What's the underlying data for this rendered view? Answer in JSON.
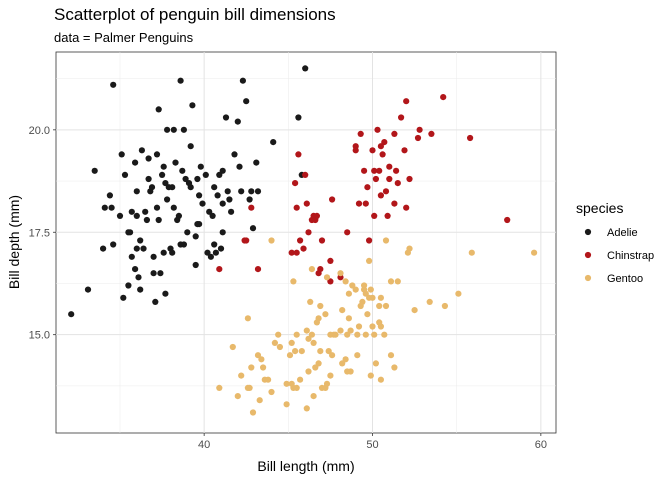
{
  "chart_data": {
    "type": "scatter",
    "title": "Scatterplot of penguin bill dimensions",
    "subtitle": "data = Palmer Penguins",
    "xlabel": "Bill length (mm)",
    "ylabel": "Bill depth (mm)",
    "xlim": [
      31.2,
      60.9
    ],
    "ylim": [
      12.6,
      21.9
    ],
    "xticks": [
      40,
      50,
      60
    ],
    "yticks": [
      15.0,
      17.5,
      20.0
    ],
    "xtick_labels": [
      "40",
      "50",
      "60"
    ],
    "ytick_labels": [
      "15.0",
      "17.5",
      "20.0"
    ],
    "grid": true,
    "legend_position": "right",
    "legend": {
      "title": "species",
      "entries": [
        "Adelie",
        "Chinstrap",
        "Gentoo"
      ]
    },
    "series": [
      {
        "name": "Adelie",
        "color": "#1a1a1a",
        "points": [
          [
            32.1,
            15.5
          ],
          [
            33.1,
            16.1
          ],
          [
            33.5,
            19.0
          ],
          [
            34.0,
            17.1
          ],
          [
            34.1,
            18.1
          ],
          [
            34.4,
            18.4
          ],
          [
            34.5,
            18.1
          ],
          [
            34.6,
            21.1
          ],
          [
            34.6,
            17.2
          ],
          [
            35.0,
            17.9
          ],
          [
            35.1,
            19.4
          ],
          [
            35.2,
            15.9
          ],
          [
            35.3,
            18.9
          ],
          [
            35.5,
            17.5
          ],
          [
            35.5,
            16.2
          ],
          [
            35.6,
            17.5
          ],
          [
            35.7,
            18.0
          ],
          [
            35.7,
            16.9
          ],
          [
            35.9,
            19.2
          ],
          [
            35.9,
            16.6
          ],
          [
            36.0,
            18.5
          ],
          [
            36.0,
            17.9
          ],
          [
            36.0,
            17.1
          ],
          [
            36.2,
            16.1
          ],
          [
            36.2,
            17.3
          ],
          [
            36.3,
            19.5
          ],
          [
            36.4,
            17.1
          ],
          [
            36.5,
            18.0
          ],
          [
            36.6,
            17.8
          ],
          [
            36.7,
            19.3
          ],
          [
            36.7,
            18.8
          ],
          [
            36.8,
            18.5
          ],
          [
            36.9,
            18.6
          ],
          [
            37.0,
            16.9
          ],
          [
            37.0,
            16.5
          ],
          [
            37.2,
            18.1
          ],
          [
            37.2,
            19.4
          ],
          [
            37.3,
            17.8
          ],
          [
            37.3,
            20.5
          ],
          [
            37.5,
            18.9
          ],
          [
            37.6,
            19.1
          ],
          [
            37.6,
            17.0
          ],
          [
            37.7,
            18.7
          ],
          [
            37.7,
            16.0
          ],
          [
            37.8,
            18.3
          ],
          [
            37.8,
            20.0
          ],
          [
            37.9,
            18.6
          ],
          [
            38.0,
            17.1
          ],
          [
            38.1,
            18.6
          ],
          [
            38.1,
            17.0
          ],
          [
            38.2,
            18.1
          ],
          [
            38.2,
            20.0
          ],
          [
            38.3,
            19.2
          ],
          [
            38.5,
            17.9
          ],
          [
            38.6,
            21.2
          ],
          [
            38.6,
            17.2
          ],
          [
            38.7,
            19.0
          ],
          [
            38.8,
            17.2
          ],
          [
            38.8,
            20.0
          ],
          [
            38.9,
            18.8
          ],
          [
            39.0,
            17.5
          ],
          [
            39.1,
            18.7
          ],
          [
            39.2,
            19.6
          ],
          [
            39.2,
            18.6
          ],
          [
            39.3,
            20.6
          ],
          [
            39.5,
            17.4
          ],
          [
            39.5,
            16.7
          ],
          [
            39.6,
            18.8
          ],
          [
            39.6,
            17.7
          ],
          [
            39.7,
            18.4
          ],
          [
            39.7,
            17.7
          ],
          [
            39.8,
            19.1
          ],
          [
            40.1,
            18.9
          ],
          [
            40.2,
            17.0
          ],
          [
            40.3,
            18.0
          ],
          [
            40.5,
            17.9
          ],
          [
            40.6,
            18.6
          ],
          [
            40.6,
            17.2
          ],
          [
            40.7,
            17.0
          ],
          [
            40.8,
            18.4
          ],
          [
            40.9,
            18.9
          ],
          [
            41.0,
            17.1
          ],
          [
            41.1,
            18.2
          ],
          [
            41.1,
            19.0
          ],
          [
            41.1,
            17.5
          ],
          [
            41.3,
            20.3
          ],
          [
            41.4,
            18.5
          ],
          [
            41.5,
            18.3
          ],
          [
            41.6,
            18.0
          ],
          [
            41.8,
            19.4
          ],
          [
            42.0,
            20.2
          ],
          [
            42.1,
            19.1
          ],
          [
            42.2,
            18.5
          ],
          [
            42.3,
            21.2
          ],
          [
            42.5,
            20.7
          ],
          [
            42.7,
            18.3
          ],
          [
            42.8,
            18.5
          ],
          [
            42.9,
            17.6
          ],
          [
            43.1,
            19.2
          ],
          [
            43.2,
            18.5
          ],
          [
            44.1,
            19.7
          ],
          [
            45.6,
            20.3
          ],
          [
            45.8,
            18.9
          ],
          [
            46.0,
            21.5
          ],
          [
            37.4,
            16.5
          ],
          [
            38.4,
            17.8
          ],
          [
            39.9,
            18.2
          ],
          [
            40.4,
            16.9
          ],
          [
            36.1,
            16.4
          ],
          [
            37.1,
            15.8
          ]
        ]
      },
      {
        "name": "Chinstrap",
        "color": "#b2161a",
        "points": [
          [
            40.9,
            16.6
          ],
          [
            42.4,
            17.3
          ],
          [
            42.5,
            17.3
          ],
          [
            43.2,
            16.6
          ],
          [
            42.8,
            18.1
          ],
          [
            45.2,
            17.0
          ],
          [
            45.4,
            18.7
          ],
          [
            45.5,
            17.0
          ],
          [
            45.6,
            19.4
          ],
          [
            45.7,
            17.3
          ],
          [
            45.9,
            17.1
          ],
          [
            46.0,
            18.9
          ],
          [
            46.1,
            18.2
          ],
          [
            46.2,
            17.5
          ],
          [
            46.4,
            17.8
          ],
          [
            46.5,
            17.9
          ],
          [
            46.6,
            17.8
          ],
          [
            46.7,
            17.9
          ],
          [
            46.8,
            16.5
          ],
          [
            46.9,
            16.6
          ],
          [
            47.0,
            17.3
          ],
          [
            47.5,
            16.8
          ],
          [
            47.6,
            18.3
          ],
          [
            48.1,
            16.4
          ],
          [
            48.5,
            17.5
          ],
          [
            49.0,
            19.5
          ],
          [
            49.2,
            18.2
          ],
          [
            49.3,
            19.9
          ],
          [
            49.5,
            19.0
          ],
          [
            49.6,
            18.2
          ],
          [
            49.7,
            18.6
          ],
          [
            49.8,
            17.3
          ],
          [
            50.0,
            19.5
          ],
          [
            50.1,
            17.9
          ],
          [
            50.2,
            18.8
          ],
          [
            50.3,
            20.0
          ],
          [
            50.4,
            19.0
          ],
          [
            50.5,
            18.4
          ],
          [
            50.6,
            19.4
          ],
          [
            50.7,
            19.7
          ],
          [
            50.8,
            18.5
          ],
          [
            50.9,
            17.9
          ],
          [
            51.0,
            18.8
          ],
          [
            51.3,
            19.9
          ],
          [
            51.4,
            19.0
          ],
          [
            51.5,
            18.7
          ],
          [
            51.7,
            20.3
          ],
          [
            51.9,
            19.5
          ],
          [
            52.0,
            18.1
          ],
          [
            52.0,
            20.7
          ],
          [
            52.2,
            18.8
          ],
          [
            52.7,
            19.8
          ],
          [
            52.8,
            20.0
          ],
          [
            53.5,
            19.9
          ],
          [
            54.2,
            20.8
          ],
          [
            55.8,
            19.8
          ],
          [
            58.0,
            17.8
          ],
          [
            49.0,
            19.6
          ],
          [
            50.5,
            19.6
          ],
          [
            51.3,
            18.2
          ],
          [
            50.1,
            19.0
          ],
          [
            47.5,
            16.3
          ],
          [
            45.5,
            18.1
          ],
          [
            51.0,
            19.1
          ]
        ]
      },
      {
        "name": "Gentoo",
        "color": "#e8b96b",
        "points": [
          [
            40.9,
            13.7
          ],
          [
            41.7,
            14.7
          ],
          [
            42.0,
            13.5
          ],
          [
            42.2,
            14.0
          ],
          [
            42.6,
            13.7
          ],
          [
            42.7,
            13.7
          ],
          [
            42.8,
            14.2
          ],
          [
            42.9,
            13.1
          ],
          [
            43.2,
            14.5
          ],
          [
            43.3,
            13.4
          ],
          [
            43.4,
            14.4
          ],
          [
            43.5,
            14.2
          ],
          [
            43.6,
            13.9
          ],
          [
            43.8,
            13.9
          ],
          [
            44.0,
            13.6
          ],
          [
            44.4,
            15.0
          ],
          [
            44.5,
            14.7
          ],
          [
            44.9,
            13.3
          ],
          [
            44.9,
            13.8
          ],
          [
            45.1,
            14.5
          ],
          [
            45.2,
            13.8
          ],
          [
            45.2,
            14.8
          ],
          [
            45.3,
            13.7
          ],
          [
            45.4,
            14.6
          ],
          [
            45.5,
            13.7
          ],
          [
            45.5,
            15.0
          ],
          [
            45.7,
            13.9
          ],
          [
            45.8,
            14.6
          ],
          [
            46.1,
            13.2
          ],
          [
            46.1,
            15.1
          ],
          [
            46.2,
            14.1
          ],
          [
            46.2,
            14.9
          ],
          [
            46.3,
            15.8
          ],
          [
            46.4,
            15.0
          ],
          [
            46.5,
            13.5
          ],
          [
            46.5,
            14.8
          ],
          [
            46.6,
            14.2
          ],
          [
            46.7,
            15.3
          ],
          [
            46.8,
            14.3
          ],
          [
            46.8,
            15.4
          ],
          [
            46.9,
            14.6
          ],
          [
            47.0,
            13.7
          ],
          [
            47.2,
            13.7
          ],
          [
            47.2,
            15.5
          ],
          [
            47.3,
            13.8
          ],
          [
            47.4,
            14.6
          ],
          [
            47.5,
            14.0
          ],
          [
            47.5,
            15.0
          ],
          [
            47.6,
            14.5
          ],
          [
            47.7,
            15.0
          ],
          [
            47.8,
            15.0
          ],
          [
            48.1,
            15.1
          ],
          [
            48.2,
            14.3
          ],
          [
            48.2,
            15.6
          ],
          [
            48.4,
            14.4
          ],
          [
            48.4,
            16.3
          ],
          [
            48.5,
            14.1
          ],
          [
            48.5,
            15.0
          ],
          [
            48.6,
            16.0
          ],
          [
            48.7,
            14.1
          ],
          [
            48.7,
            15.1
          ],
          [
            48.8,
            16.2
          ],
          [
            49.0,
            16.1
          ],
          [
            49.1,
            14.5
          ],
          [
            49.1,
            15.0
          ],
          [
            49.2,
            15.2
          ],
          [
            49.3,
            15.7
          ],
          [
            49.4,
            15.8
          ],
          [
            49.5,
            16.1
          ],
          [
            49.5,
            16.2
          ],
          [
            49.6,
            15.0
          ],
          [
            49.6,
            16.0
          ],
          [
            49.8,
            15.9
          ],
          [
            49.8,
            16.8
          ],
          [
            49.9,
            16.1
          ],
          [
            50.0,
            15.2
          ],
          [
            50.0,
            15.9
          ],
          [
            50.1,
            15.0
          ],
          [
            50.2,
            14.3
          ],
          [
            50.4,
            15.3
          ],
          [
            50.4,
            15.7
          ],
          [
            50.5,
            15.2
          ],
          [
            50.5,
            15.9
          ],
          [
            50.7,
            15.0
          ],
          [
            50.8,
            15.7
          ],
          [
            50.8,
            17.3
          ],
          [
            51.1,
            14.5
          ],
          [
            51.1,
            16.3
          ],
          [
            51.3,
            14.2
          ],
          [
            51.5,
            16.3
          ],
          [
            52.1,
            17.0
          ],
          [
            52.2,
            17.1
          ],
          [
            52.5,
            15.6
          ],
          [
            53.4,
            15.8
          ],
          [
            54.3,
            15.7
          ],
          [
            55.1,
            16.0
          ],
          [
            55.9,
            17.0
          ],
          [
            59.6,
            17.0
          ],
          [
            44.0,
            17.3
          ],
          [
            45.3,
            16.3
          ],
          [
            46.4,
            16.6
          ],
          [
            47.3,
            16.4
          ],
          [
            48.1,
            16.5
          ],
          [
            49.9,
            14.0
          ],
          [
            50.5,
            13.9
          ],
          [
            42.6,
            15.4
          ],
          [
            44.2,
            14.8
          ],
          [
            46.9,
            15.7
          ],
          [
            48.6,
            15.4
          ],
          [
            49.7,
            15.5
          ]
        ]
      }
    ]
  }
}
